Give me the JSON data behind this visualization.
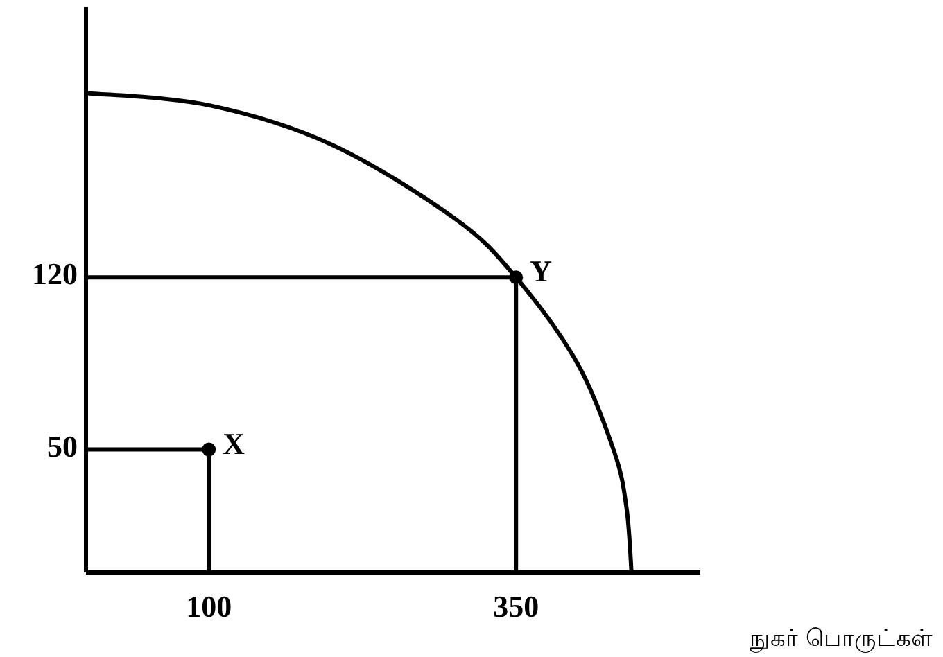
{
  "chart_data": {
    "type": "line",
    "xlabel": "நுகர் பொருட்கள்",
    "x": [
      0,
      100,
      200,
      300,
      350,
      400,
      430,
      440,
      444
    ],
    "series": [
      {
        "color": "#000000",
        "values": [
          195,
          190,
          174,
          144,
          120,
          85,
          49,
          26,
          0
        ]
      },
      {
        "color": "#000000",
        "x": [
          0,
          100,
          100
        ],
        "values": [
          50,
          50,
          0
        ]
      },
      {
        "color": "#000000",
        "x": [
          0,
          350,
          350
        ],
        "values": [
          120,
          120,
          0
        ]
      },
      {
        "type": "scatter",
        "color": "#000000",
        "marker": "circle",
        "x": [
          100,
          350
        ],
        "values": [
          50,
          120
        ]
      }
    ],
    "annotations": [
      {
        "text": "X",
        "x": 100,
        "y": 50
      },
      {
        "text": "Y",
        "x": 350,
        "y": 120
      }
    ],
    "xlim": [
      0,
      500
    ],
    "ylim": [
      0,
      230
    ],
    "xticks": [
      100,
      350
    ],
    "yticks": [
      50,
      120
    ],
    "grid": false
  }
}
